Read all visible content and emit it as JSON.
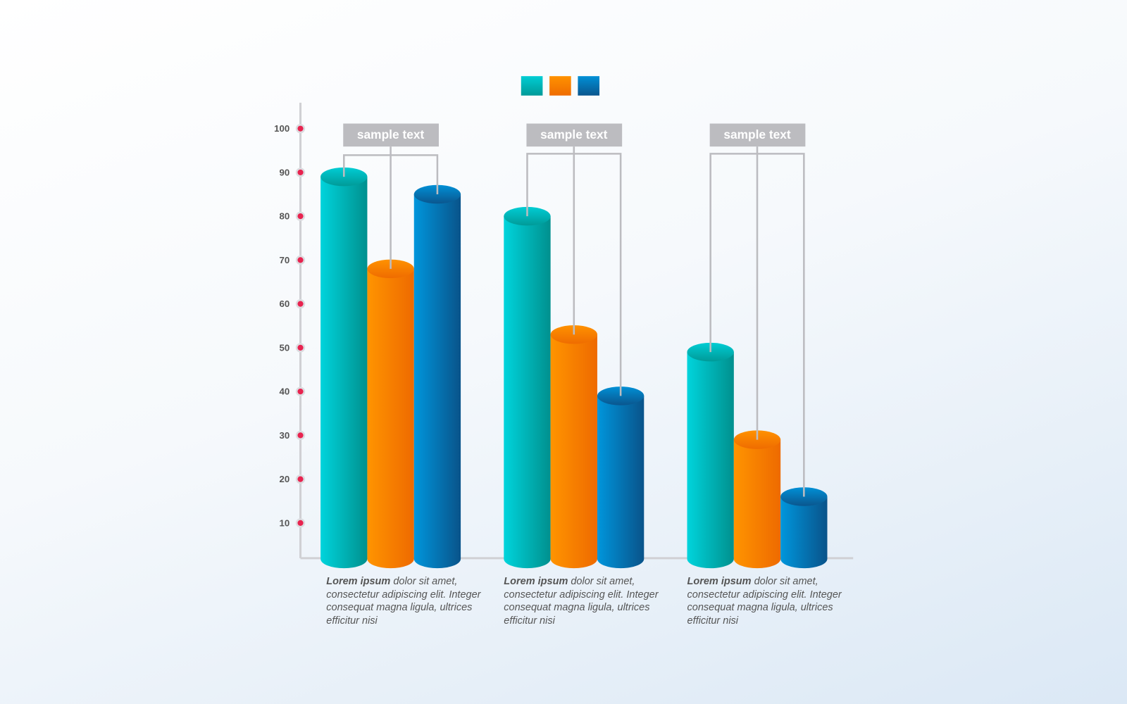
{
  "chart_data": {
    "type": "bar",
    "style": "3d-cylinder",
    "categories": [
      "",
      "",
      ""
    ],
    "series": [
      {
        "values": [
          89,
          80,
          49
        ],
        "color": "#00c4cc"
      },
      {
        "values": [
          68,
          53,
          29
        ],
        "color": "#f98500"
      },
      {
        "values": [
          85,
          39,
          16
        ],
        "color": "#0078b8"
      }
    ],
    "yticks": [
      10,
      20,
      30,
      40,
      50,
      60,
      70,
      80,
      90,
      100
    ],
    "ylim": [
      0,
      100
    ],
    "grid": false,
    "legend": "top-center",
    "callouts": [
      "sample text",
      "sample text",
      "sample text"
    ],
    "descriptions": [
      {
        "bold": "Lorem ipsum",
        "text": " dolor sit amet, consectetur adipiscing elit. Integer consequat magna ligula, ultrices efficitur nisi"
      },
      {
        "bold": "Lorem ipsum",
        "text": " dolor sit amet, consectetur adipiscing elit. Integer consequat magna ligula, ultrices efficitur nisi"
      },
      {
        "bold": "Lorem ipsum",
        "text": " dolor sit amet, consectetur adipiscing elit. Integer consequat magna ligula, ultrices efficitur nisi"
      }
    ],
    "tick_dot_color": "#e8234f"
  }
}
